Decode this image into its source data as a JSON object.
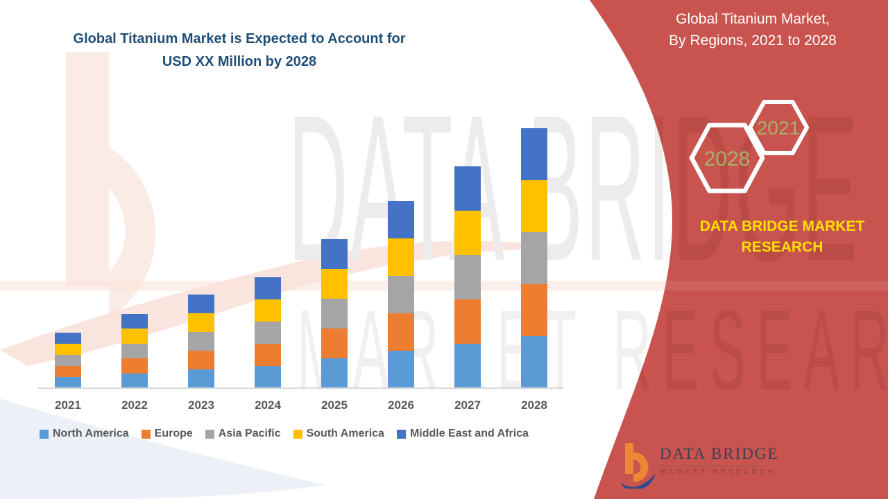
{
  "chart": {
    "title_line1": "Global Titanium Market is Expected to Account for",
    "title_line2": "USD XX Million by 2028",
    "title_color": "#1F4E79"
  },
  "chart_data": {
    "type": "bar",
    "stacked": true,
    "title": "Global Titanium Market is Expected to Account for USD XX Million by 2028",
    "xlabel": "",
    "ylabel": "",
    "units": "relative index (y-axis not shown; values labeled USD XX Million)",
    "y_axis_visible": false,
    "grid": false,
    "legend_position": "bottom",
    "categories": [
      "2021",
      "2022",
      "2023",
      "2024",
      "2025",
      "2026",
      "2027",
      "2028"
    ],
    "series": [
      {
        "name": "North America",
        "color": "#5B9BD5",
        "values": [
          3.2,
          4.3,
          5.4,
          6.4,
          8.6,
          10.8,
          12.8,
          15.0
        ]
      },
      {
        "name": "Europe",
        "color": "#ED7D31",
        "values": [
          3.2,
          4.3,
          5.4,
          6.4,
          8.6,
          10.8,
          12.8,
          15.0
        ]
      },
      {
        "name": "Asia Pacific",
        "color": "#A5A5A5",
        "values": [
          3.2,
          4.3,
          5.4,
          6.4,
          8.6,
          10.8,
          12.8,
          15.0
        ]
      },
      {
        "name": "South America",
        "color": "#FFC000",
        "values": [
          3.2,
          4.3,
          5.4,
          6.4,
          8.6,
          10.8,
          12.8,
          15.0
        ]
      },
      {
        "name": "Middle East and Africa",
        "color": "#4472C4",
        "values": [
          3.2,
          4.3,
          5.4,
          6.4,
          8.6,
          10.8,
          12.8,
          15.0
        ]
      }
    ],
    "stack_totals": [
      16.0,
      21.5,
      27.0,
      32.0,
      43.0,
      54.0,
      64.0,
      75.0
    ]
  },
  "panel": {
    "background_color": "#C9534F",
    "title_line1": "Global Titanium Market,",
    "title_line2": "By Regions, 2021 to 2028",
    "hexagons": [
      {
        "label": "2021"
      },
      {
        "label": "2028"
      }
    ],
    "hex_year_color": "#A6B168",
    "brand_line1": "DATA BRIDGE MARKET",
    "brand_line2": "RESEARCH",
    "brand_color": "#FFE000"
  },
  "logo": {
    "name": "DATA BRIDGE",
    "tagline": "MARKET RESEARCH"
  },
  "watermark": {
    "line1": "DATA BRIDGE",
    "line2": "MARKET RESEARCH"
  }
}
